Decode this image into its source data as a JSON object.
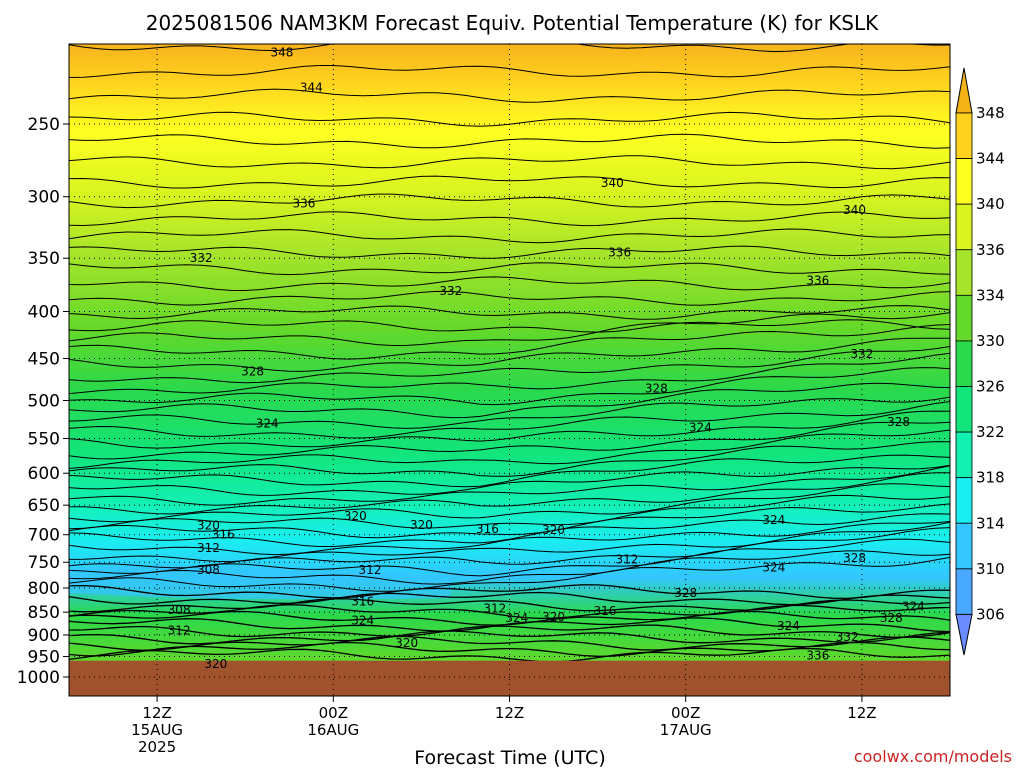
{
  "chart_data": {
    "type": "heatmap",
    "title": "2025081506 NAM3KM Forecast Equiv. Potential Temperature (K) for KSLK",
    "xlabel": "Forecast Time (UTC)",
    "ylabel": "",
    "credit": "coolwx.com/models",
    "y_axis": {
      "scale": "pressure (log)",
      "range": [
        1020,
        200
      ],
      "ticks": [
        250,
        300,
        350,
        400,
        450,
        500,
        550,
        600,
        650,
        700,
        750,
        800,
        850,
        900,
        950,
        1000
      ]
    },
    "x_axis": {
      "range": [
        "2025-08-15 06Z",
        "2025-08-17 18Z"
      ],
      "ticks": [
        {
          "line1": "12Z",
          "line2": "15AUG",
          "line3": "2025",
          "hour": 6
        },
        {
          "line1": "00Z",
          "line2": "16AUG",
          "line3": "",
          "hour": 18
        },
        {
          "line1": "12Z",
          "line2": "",
          "line3": "",
          "hour": 30
        },
        {
          "line1": "00Z",
          "line2": "17AUG",
          "line3": "",
          "hour": 42
        },
        {
          "line1": "12Z",
          "line2": "",
          "line3": "",
          "hour": 54
        }
      ]
    },
    "colorbar": {
      "labels": [
        "348",
        "344",
        "340",
        "336",
        "334",
        "330",
        "326",
        "322",
        "318",
        "314",
        "310",
        "306"
      ],
      "colors": [
        "#f5b317",
        "#ffd21e",
        "#ffff1f",
        "#d9f520",
        "#a5e42a",
        "#63d92a",
        "#2ad94c",
        "#12e57b",
        "#12f0b2",
        "#19eef0",
        "#33c6ff",
        "#49a8ff",
        "#6a8cff"
      ]
    },
    "ground_color": "#a0522d",
    "contour_labels": [
      {
        "text": "348",
        "x": 14.5,
        "p": 209
      },
      {
        "text": "344",
        "x": 16.5,
        "p": 228
      },
      {
        "text": "340",
        "x": 37,
        "p": 290
      },
      {
        "text": "340",
        "x": 53.5,
        "p": 310
      },
      {
        "text": "336",
        "x": 16,
        "p": 305
      },
      {
        "text": "336",
        "x": 37.5,
        "p": 345
      },
      {
        "text": "336",
        "x": 51,
        "p": 370
      },
      {
        "text": "332",
        "x": 9,
        "p": 350
      },
      {
        "text": "332",
        "x": 26,
        "p": 380
      },
      {
        "text": "332",
        "x": 54,
        "p": 445
      },
      {
        "text": "328",
        "x": 12.5,
        "p": 465
      },
      {
        "text": "328",
        "x": 40,
        "p": 485
      },
      {
        "text": "328",
        "x": 56.5,
        "p": 528
      },
      {
        "text": "324",
        "x": 13.5,
        "p": 530
      },
      {
        "text": "324",
        "x": 43,
        "p": 535
      },
      {
        "text": "324",
        "x": 48,
        "p": 675
      },
      {
        "text": "324",
        "x": 48,
        "p": 760
      },
      {
        "text": "324",
        "x": 20,
        "p": 868
      },
      {
        "text": "324",
        "x": 30.5,
        "p": 862
      },
      {
        "text": "324",
        "x": 49,
        "p": 880
      },
      {
        "text": "324",
        "x": 57.5,
        "p": 838
      },
      {
        "text": "320",
        "x": 19.5,
        "p": 668
      },
      {
        "text": "320",
        "x": 24,
        "p": 683
      },
      {
        "text": "320",
        "x": 9.5,
        "p": 684
      },
      {
        "text": "320",
        "x": 33,
        "p": 692
      },
      {
        "text": "320",
        "x": 33,
        "p": 860
      },
      {
        "text": "320",
        "x": 23,
        "p": 918
      },
      {
        "text": "320",
        "x": 10,
        "p": 968
      },
      {
        "text": "316",
        "x": 10.5,
        "p": 700
      },
      {
        "text": "316",
        "x": 28.5,
        "p": 690
      },
      {
        "text": "316",
        "x": 20,
        "p": 828
      },
      {
        "text": "316",
        "x": 36.5,
        "p": 848
      },
      {
        "text": "312",
        "x": 9.5,
        "p": 724
      },
      {
        "text": "312",
        "x": 20.5,
        "p": 765
      },
      {
        "text": "312",
        "x": 38,
        "p": 745
      },
      {
        "text": "312",
        "x": 29,
        "p": 842
      },
      {
        "text": "312",
        "x": 7.5,
        "p": 890
      },
      {
        "text": "308",
        "x": 9.5,
        "p": 765
      },
      {
        "text": "308",
        "x": 7.5,
        "p": 845
      },
      {
        "text": "328",
        "x": 42,
        "p": 810
      },
      {
        "text": "328",
        "x": 53.5,
        "p": 742
      },
      {
        "text": "328",
        "x": 56,
        "p": 862
      },
      {
        "text": "332",
        "x": 53,
        "p": 905
      },
      {
        "text": "336",
        "x": 51,
        "p": 948
      }
    ]
  }
}
